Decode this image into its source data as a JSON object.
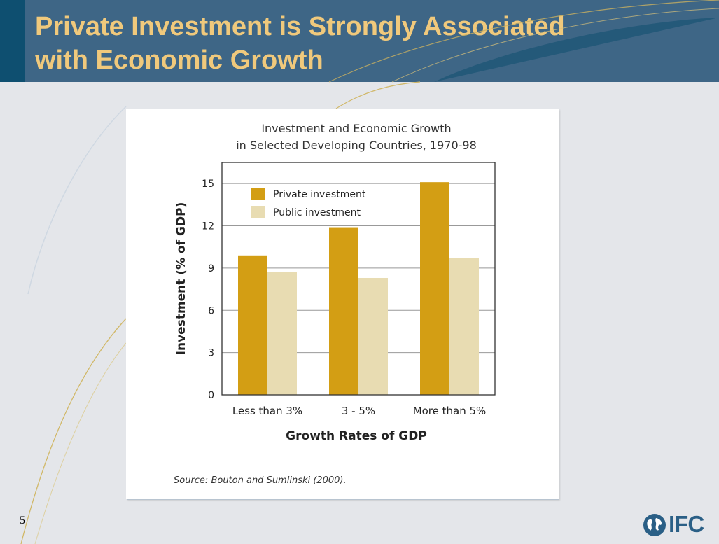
{
  "slide": {
    "title_line1": "Private Investment is Strongly Associated",
    "title_line2": "with Economic Growth",
    "page_number": "5",
    "source": "Source: Bouton and Sumlinski (2000).",
    "logo_text": "IFC",
    "colors": {
      "header": "#3e6686",
      "title": "#f0c97c",
      "background": "#e4e6ea"
    }
  },
  "chart_data": {
    "type": "bar",
    "title": "Investment and Economic Growth",
    "subtitle": "in Selected Developing Countries, 1970-98",
    "xlabel": "Growth Rates of GDP",
    "ylabel": "Investment (% of GDP)",
    "categories": [
      "Less than 3%",
      "3 - 5%",
      "More than 5%"
    ],
    "series": [
      {
        "name": "Private investment",
        "values": [
          9.9,
          11.9,
          15.1
        ],
        "color": "#d39e14"
      },
      {
        "name": "Public investment",
        "values": [
          8.7,
          8.3,
          9.7
        ],
        "color": "#e8dcb2"
      }
    ],
    "ylim": [
      0,
      16.5
    ],
    "yticks": [
      0,
      3,
      6,
      9,
      12,
      15
    ],
    "grid": true,
    "legend": "top-left"
  }
}
